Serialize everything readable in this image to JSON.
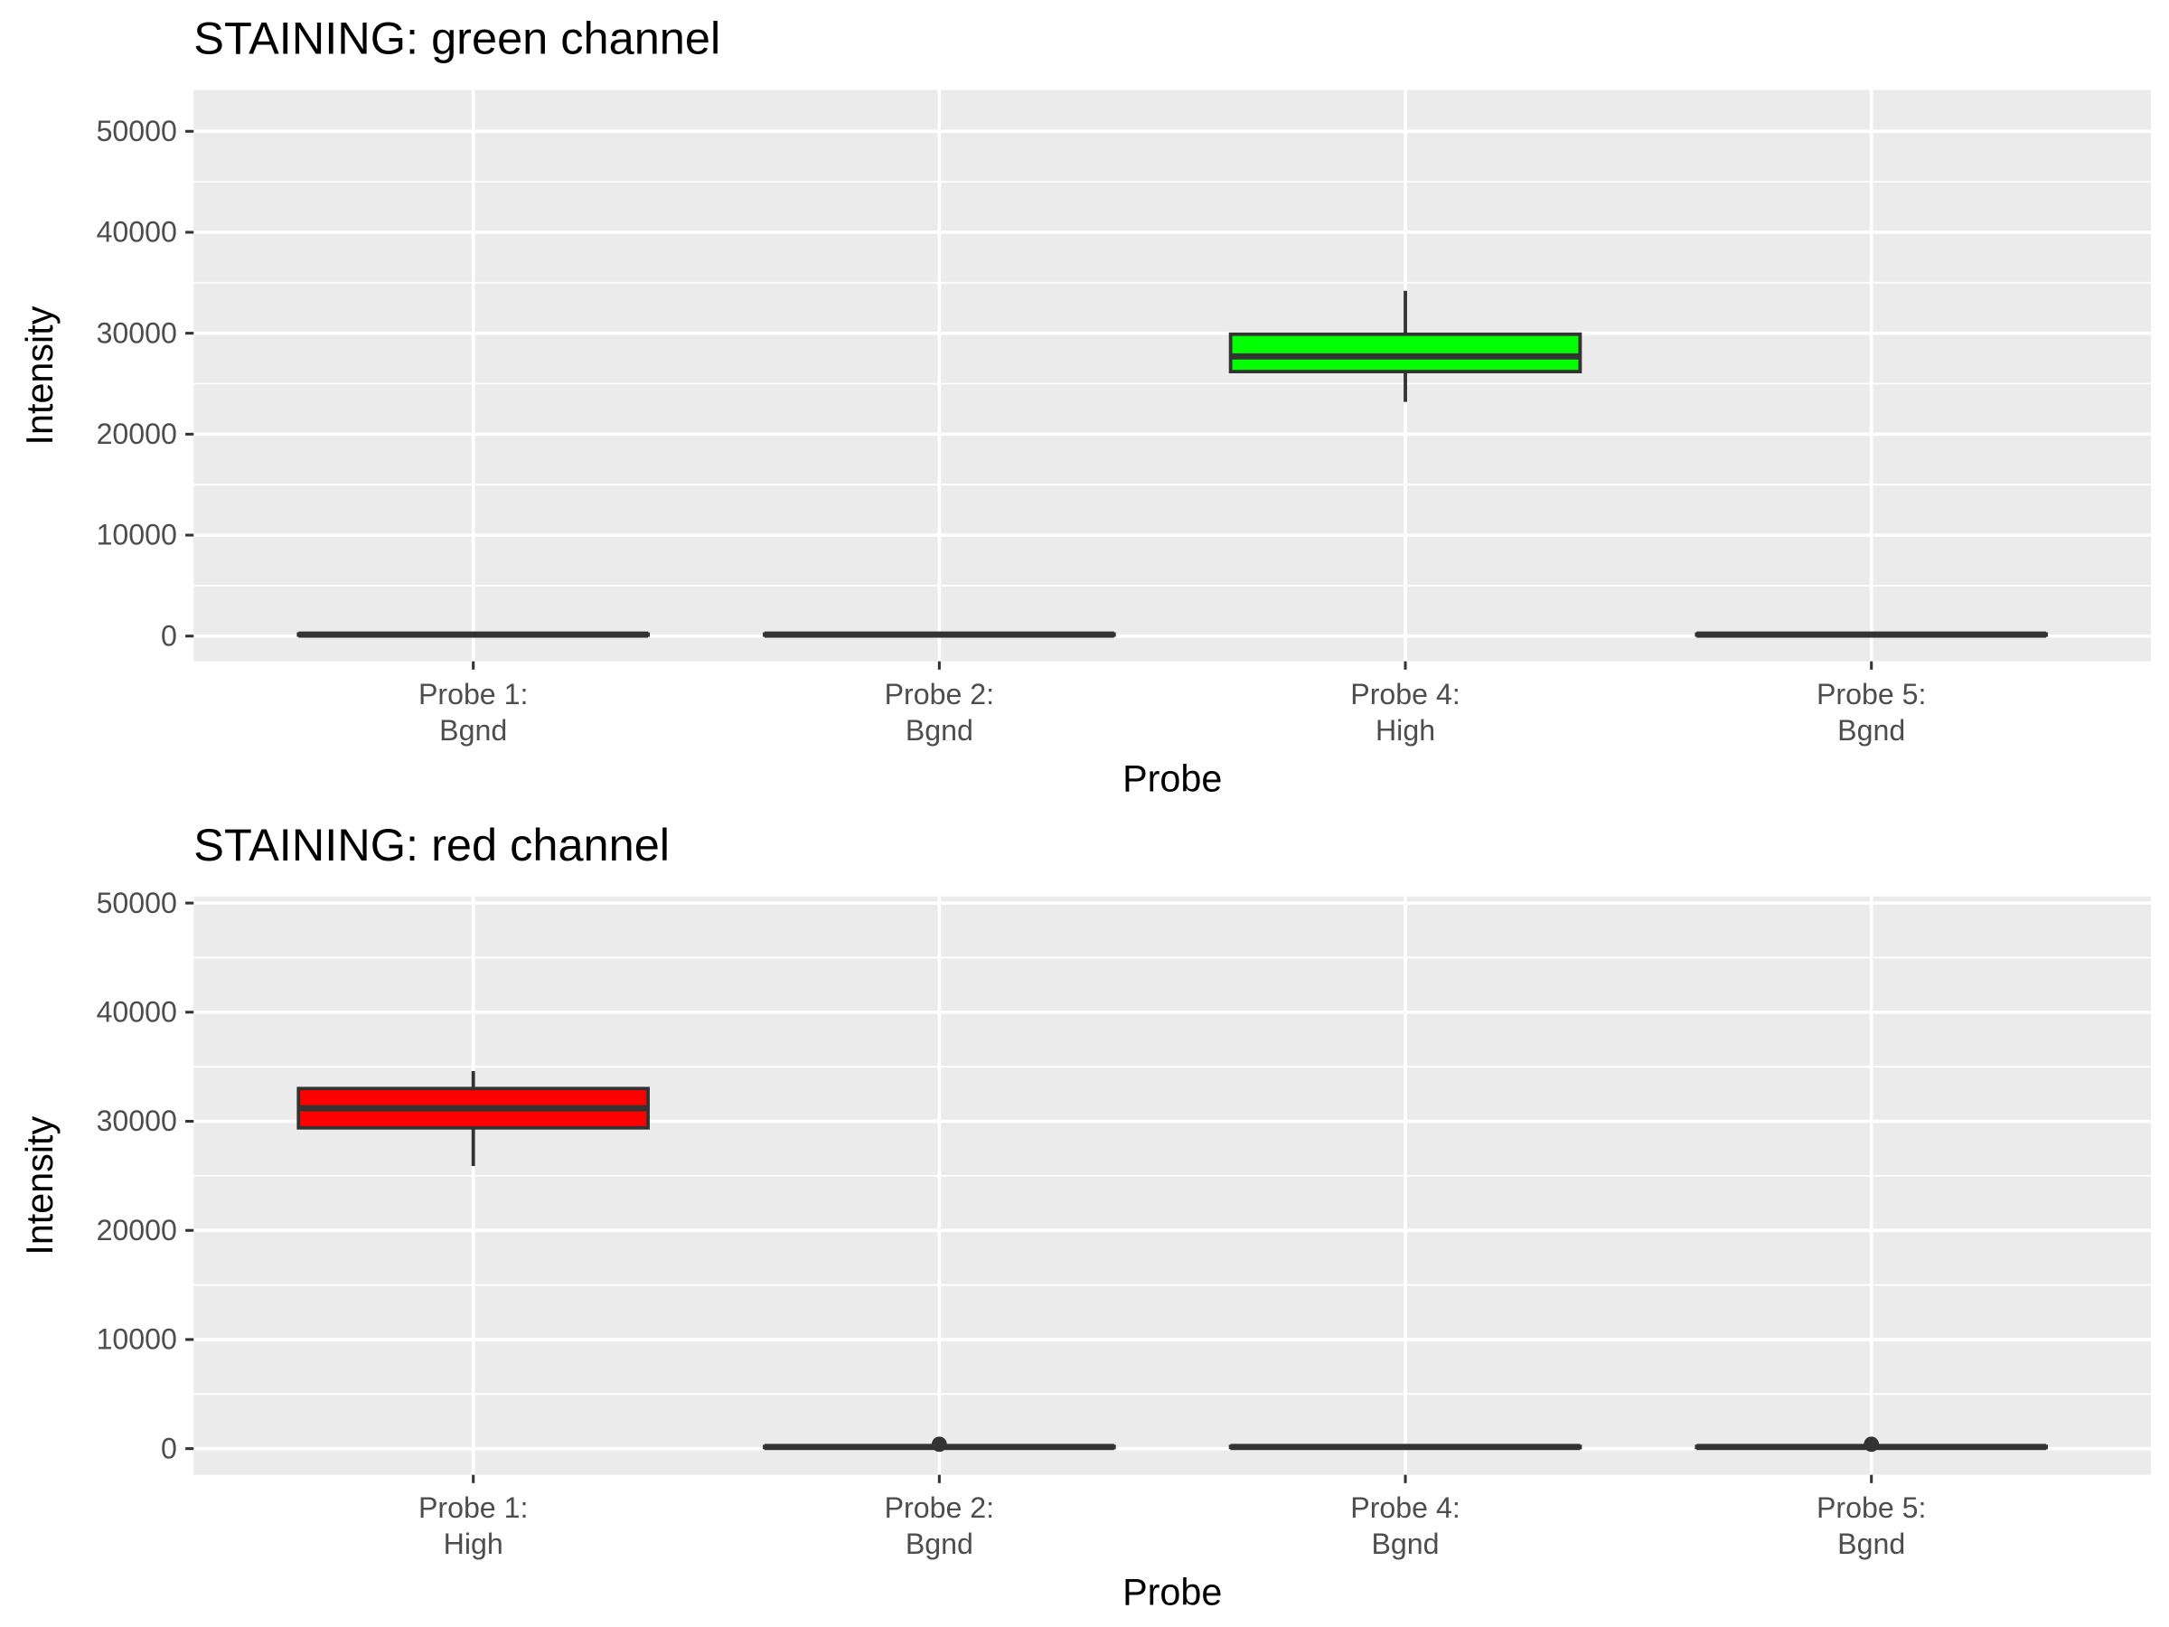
{
  "chart_data": [
    {
      "type": "box",
      "title": "STAINING: green channel",
      "x_label": "Probe",
      "y_label": "Intensity",
      "categories": [
        "Probe 1:\nBgnd",
        "Probe 2:\nBgnd",
        "Probe 4:\nHigh",
        "Probe 5:\nBgnd"
      ],
      "boxes": [
        {
          "min": 0,
          "q1": 100,
          "median": 150,
          "q3": 200,
          "max": 300,
          "outliers": [],
          "color": "#ffffff"
        },
        {
          "min": 0,
          "q1": 100,
          "median": 150,
          "q3": 200,
          "max": 300,
          "outliers": [],
          "color": "#ffffff"
        },
        {
          "min": 23200,
          "q1": 26200,
          "median": 27700,
          "q3": 29900,
          "max": 34200,
          "outliers": [],
          "color": "#00ff00"
        },
        {
          "min": 0,
          "q1": 100,
          "median": 150,
          "q3": 200,
          "max": 300,
          "outliers": [],
          "color": "#ffffff"
        }
      ],
      "ylim": [
        -2500,
        54100
      ],
      "yticks": [
        0,
        10000,
        20000,
        30000,
        40000,
        50000
      ],
      "minor_yticks": [
        5000,
        15000,
        25000,
        35000,
        45000
      ],
      "grid": true
    },
    {
      "type": "box",
      "title": "STAINING: red channel",
      "x_label": "Probe",
      "y_label": "Intensity",
      "categories": [
        "Probe 1:\nHigh",
        "Probe 2:\nBgnd",
        "Probe 4:\nBgnd",
        "Probe 5:\nBgnd"
      ],
      "boxes": [
        {
          "min": 25900,
          "q1": 29400,
          "median": 31200,
          "q3": 33000,
          "max": 34600,
          "outliers": [],
          "color": "#ff0000"
        },
        {
          "min": 0,
          "q1": 100,
          "median": 150,
          "q3": 200,
          "max": 300,
          "outliers": [
            400
          ],
          "color": "#ffffff"
        },
        {
          "min": 0,
          "q1": 100,
          "median": 150,
          "q3": 200,
          "max": 300,
          "outliers": [],
          "color": "#ffffff"
        },
        {
          "min": 0,
          "q1": 100,
          "median": 150,
          "q3": 200,
          "max": 300,
          "outliers": [
            400
          ],
          "color": "#ffffff"
        }
      ],
      "ylim": [
        -2400,
        50600
      ],
      "yticks": [
        0,
        10000,
        20000,
        30000,
        40000,
        50000
      ],
      "minor_yticks": [
        5000,
        15000,
        25000,
        35000,
        45000
      ],
      "grid": true
    }
  ]
}
